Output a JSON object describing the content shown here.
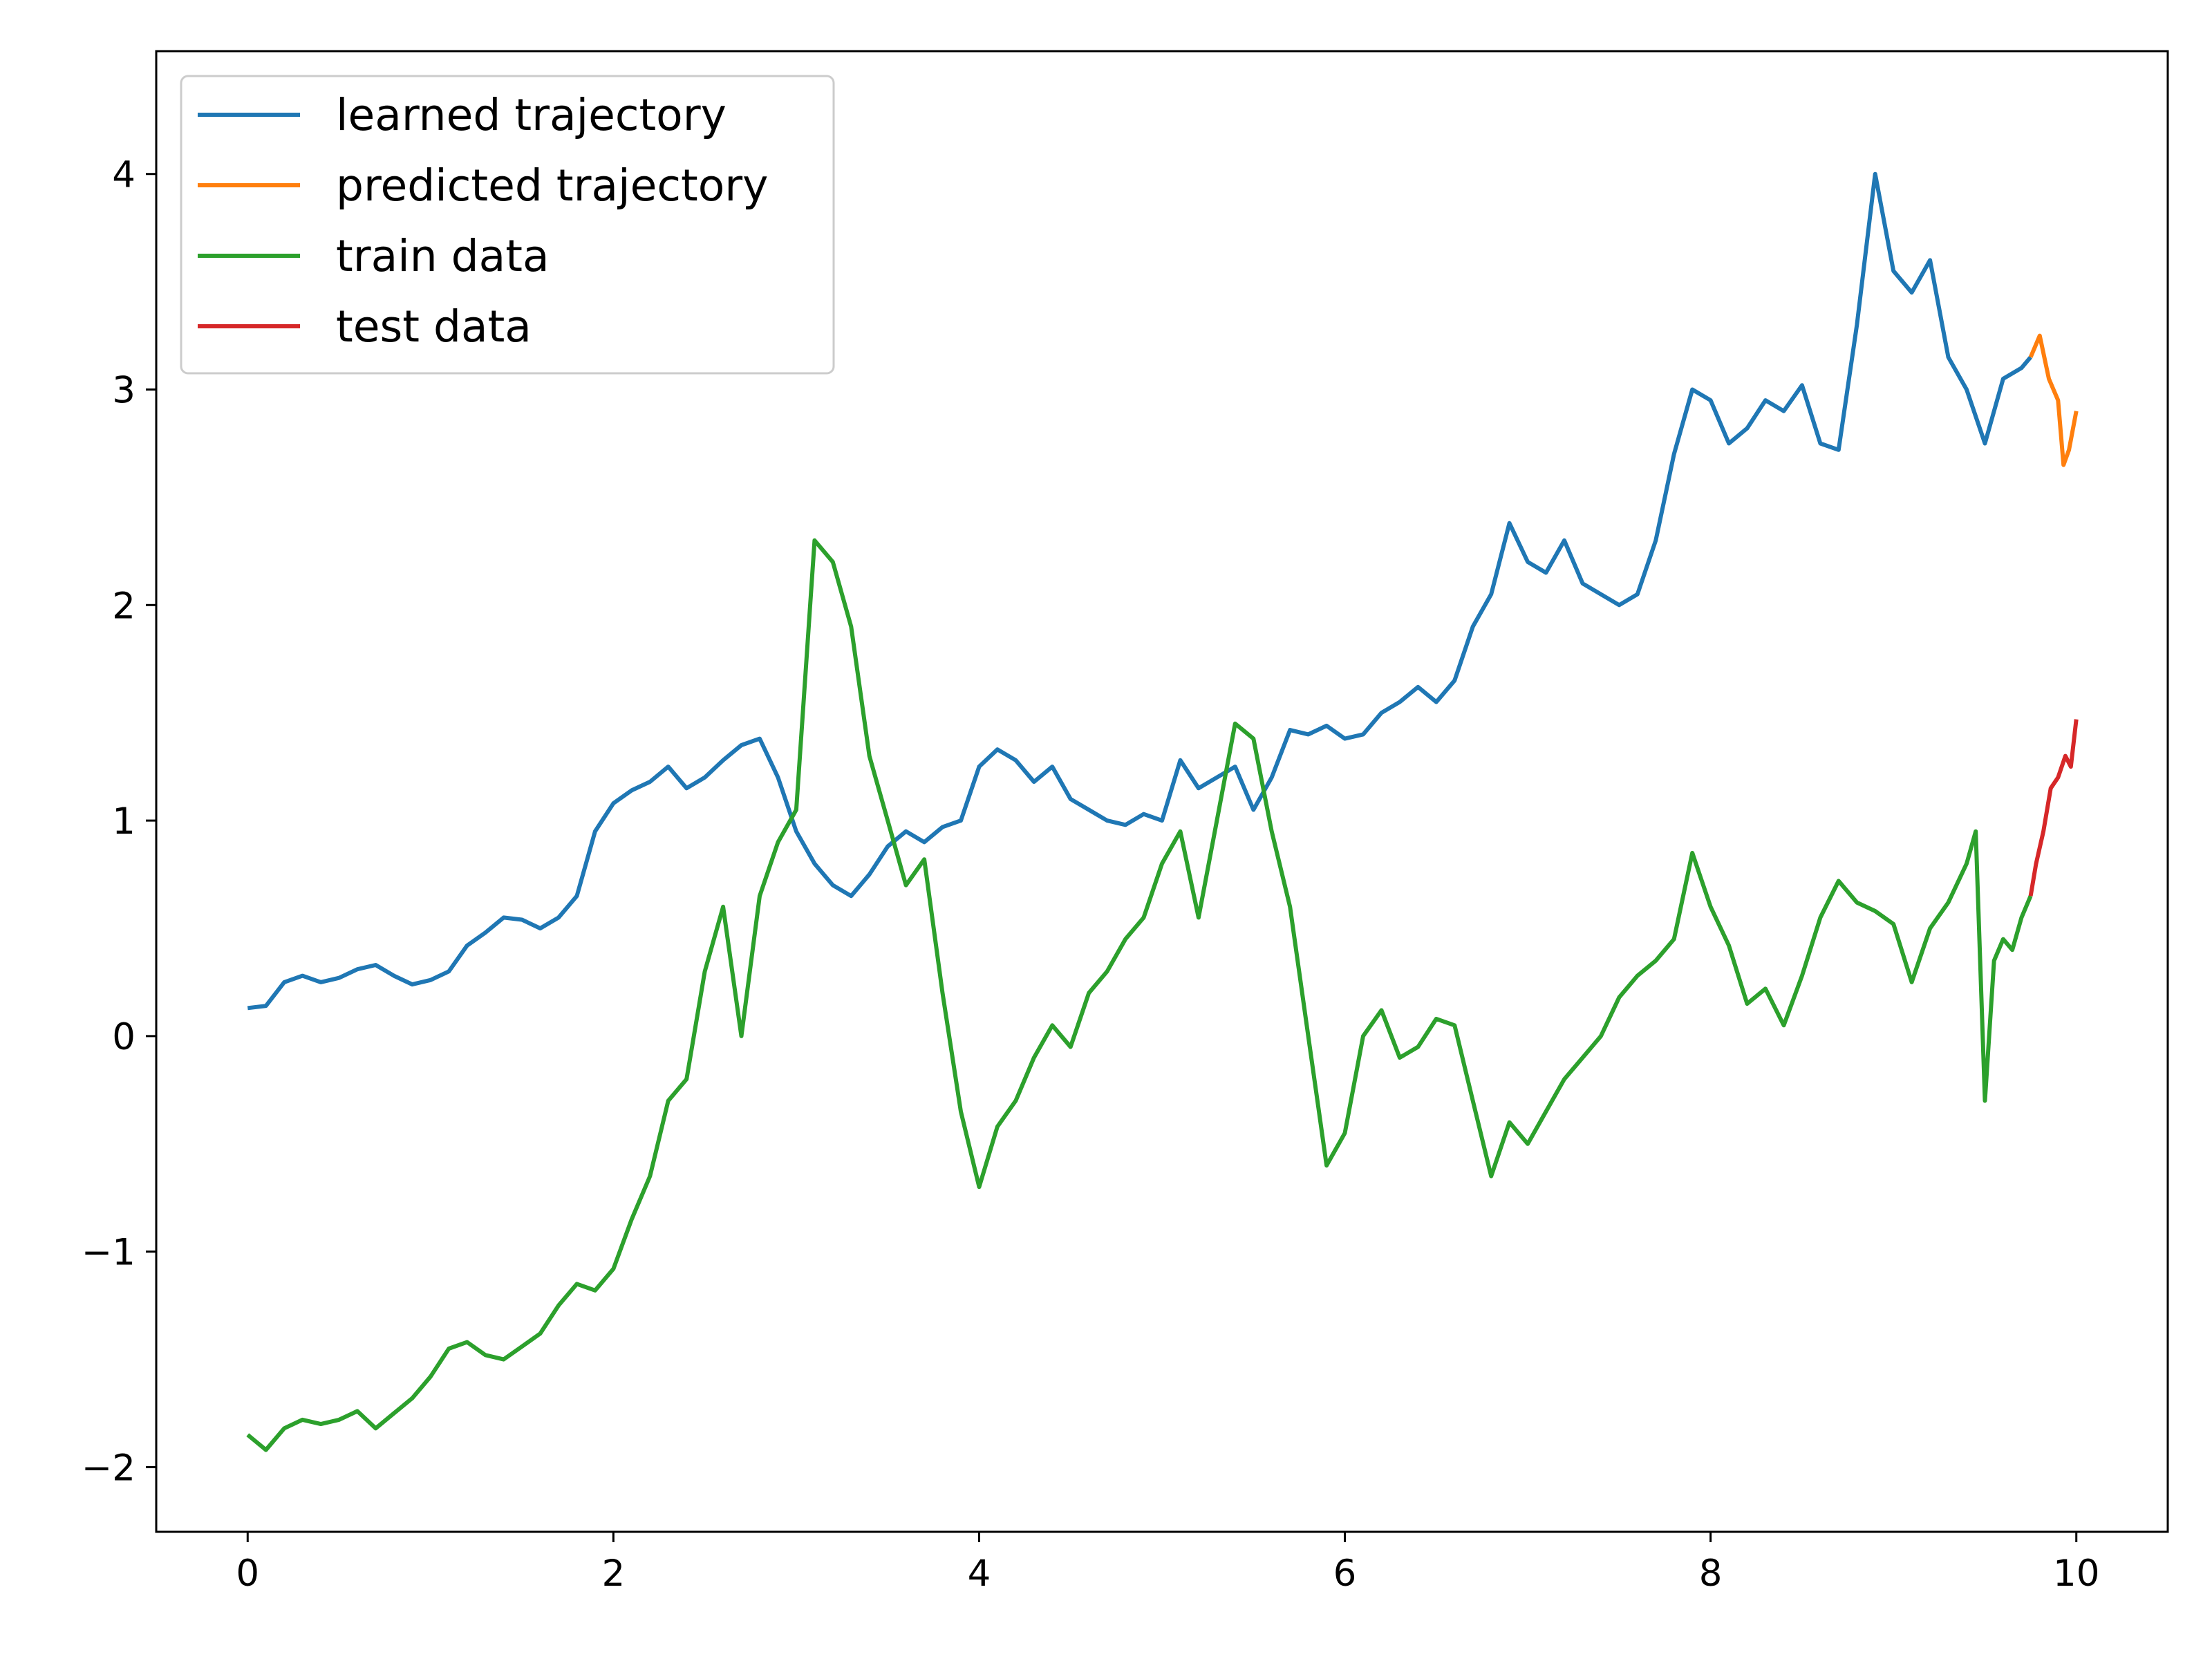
{
  "chart_data": {
    "type": "line",
    "title": "",
    "xlabel": "",
    "ylabel": "",
    "xlim": [
      -0.5,
      10.5
    ],
    "ylim": [
      -2.3,
      4.57
    ],
    "grid": false,
    "legend_position": "top-left",
    "x_ticks": [
      {
        "value": 0,
        "label": "0"
      },
      {
        "value": 2,
        "label": "2"
      },
      {
        "value": 4,
        "label": "4"
      },
      {
        "value": 6,
        "label": "6"
      },
      {
        "value": 8,
        "label": "8"
      },
      {
        "value": 10,
        "label": "10"
      }
    ],
    "y_ticks": [
      {
        "value": -2,
        "label": "−2"
      },
      {
        "value": -1,
        "label": "−1"
      },
      {
        "value": 0,
        "label": "0"
      },
      {
        "value": 1,
        "label": "1"
      },
      {
        "value": 2,
        "label": "2"
      },
      {
        "value": 3,
        "label": "3"
      },
      {
        "value": 4,
        "label": "4"
      }
    ],
    "series": [
      {
        "name": "learned trajectory",
        "color": "#1f77b4",
        "points": [
          [
            0,
            0.13
          ],
          [
            0.1,
            0.14
          ],
          [
            0.2,
            0.25
          ],
          [
            0.3,
            0.28
          ],
          [
            0.4,
            0.25
          ],
          [
            0.5,
            0.27
          ],
          [
            0.6,
            0.31
          ],
          [
            0.7,
            0.33
          ],
          [
            0.8,
            0.28
          ],
          [
            0.9,
            0.24
          ],
          [
            1.0,
            0.26
          ],
          [
            1.1,
            0.3
          ],
          [
            1.2,
            0.42
          ],
          [
            1.3,
            0.48
          ],
          [
            1.4,
            0.55
          ],
          [
            1.5,
            0.54
          ],
          [
            1.6,
            0.5
          ],
          [
            1.7,
            0.55
          ],
          [
            1.8,
            0.65
          ],
          [
            1.9,
            0.95
          ],
          [
            2.0,
            1.08
          ],
          [
            2.1,
            1.14
          ],
          [
            2.2,
            1.18
          ],
          [
            2.3,
            1.25
          ],
          [
            2.4,
            1.15
          ],
          [
            2.5,
            1.2
          ],
          [
            2.6,
            1.28
          ],
          [
            2.7,
            1.35
          ],
          [
            2.8,
            1.38
          ],
          [
            2.9,
            1.2
          ],
          [
            3.0,
            0.95
          ],
          [
            3.1,
            0.8
          ],
          [
            3.2,
            0.7
          ],
          [
            3.3,
            0.65
          ],
          [
            3.4,
            0.75
          ],
          [
            3.5,
            0.88
          ],
          [
            3.6,
            0.95
          ],
          [
            3.7,
            0.9
          ],
          [
            3.8,
            0.97
          ],
          [
            3.9,
            1.0
          ],
          [
            4.0,
            1.25
          ],
          [
            4.1,
            1.33
          ],
          [
            4.2,
            1.28
          ],
          [
            4.3,
            1.18
          ],
          [
            4.4,
            1.25
          ],
          [
            4.5,
            1.1
          ],
          [
            4.6,
            1.05
          ],
          [
            4.7,
            1.0
          ],
          [
            4.8,
            0.98
          ],
          [
            4.9,
            1.03
          ],
          [
            5.0,
            1.0
          ],
          [
            5.1,
            1.28
          ],
          [
            5.2,
            1.15
          ],
          [
            5.3,
            1.2
          ],
          [
            5.4,
            1.25
          ],
          [
            5.5,
            1.05
          ],
          [
            5.6,
            1.2
          ],
          [
            5.7,
            1.42
          ],
          [
            5.8,
            1.4
          ],
          [
            5.9,
            1.44
          ],
          [
            6.0,
            1.38
          ],
          [
            6.1,
            1.4
          ],
          [
            6.2,
            1.5
          ],
          [
            6.3,
            1.55
          ],
          [
            6.4,
            1.62
          ],
          [
            6.5,
            1.55
          ],
          [
            6.6,
            1.65
          ],
          [
            6.7,
            1.9
          ],
          [
            6.8,
            2.05
          ],
          [
            6.9,
            2.38
          ],
          [
            7.0,
            2.2
          ],
          [
            7.1,
            2.15
          ],
          [
            7.2,
            2.3
          ],
          [
            7.3,
            2.1
          ],
          [
            7.4,
            2.05
          ],
          [
            7.5,
            2.0
          ],
          [
            7.6,
            2.05
          ],
          [
            7.7,
            2.3
          ],
          [
            7.8,
            2.7
          ],
          [
            7.9,
            3.0
          ],
          [
            8.0,
            2.95
          ],
          [
            8.1,
            2.75
          ],
          [
            8.2,
            2.82
          ],
          [
            8.3,
            2.95
          ],
          [
            8.4,
            2.9
          ],
          [
            8.5,
            3.02
          ],
          [
            8.6,
            2.75
          ],
          [
            8.7,
            2.72
          ],
          [
            8.8,
            3.3
          ],
          [
            8.9,
            4.0
          ],
          [
            9.0,
            3.55
          ],
          [
            9.1,
            3.45
          ],
          [
            9.2,
            3.6
          ],
          [
            9.3,
            3.15
          ],
          [
            9.4,
            3.0
          ],
          [
            9.5,
            2.75
          ],
          [
            9.6,
            3.05
          ],
          [
            9.7,
            3.1
          ],
          [
            9.75,
            3.15
          ]
        ]
      },
      {
        "name": "predicted trajectory",
        "color": "#ff7f0e",
        "points": [
          [
            9.75,
            3.15
          ],
          [
            9.8,
            3.25
          ],
          [
            9.85,
            3.05
          ],
          [
            9.9,
            2.95
          ],
          [
            9.93,
            2.65
          ],
          [
            9.96,
            2.72
          ],
          [
            10.0,
            2.9
          ]
        ]
      },
      {
        "name": "train data",
        "color": "#2ca02c",
        "points": [
          [
            0,
            -1.85
          ],
          [
            0.1,
            -1.92
          ],
          [
            0.2,
            -1.82
          ],
          [
            0.3,
            -1.78
          ],
          [
            0.4,
            -1.8
          ],
          [
            0.5,
            -1.78
          ],
          [
            0.6,
            -1.74
          ],
          [
            0.7,
            -1.82
          ],
          [
            0.8,
            -1.75
          ],
          [
            0.9,
            -1.68
          ],
          [
            1.0,
            -1.58
          ],
          [
            1.1,
            -1.45
          ],
          [
            1.2,
            -1.42
          ],
          [
            1.3,
            -1.48
          ],
          [
            1.4,
            -1.5
          ],
          [
            1.5,
            -1.44
          ],
          [
            1.6,
            -1.38
          ],
          [
            1.7,
            -1.25
          ],
          [
            1.8,
            -1.15
          ],
          [
            1.9,
            -1.18
          ],
          [
            2.0,
            -1.08
          ],
          [
            2.1,
            -0.85
          ],
          [
            2.2,
            -0.65
          ],
          [
            2.3,
            -0.3
          ],
          [
            2.4,
            -0.2
          ],
          [
            2.5,
            0.3
          ],
          [
            2.6,
            0.6
          ],
          [
            2.7,
            0.0
          ],
          [
            2.8,
            0.65
          ],
          [
            2.9,
            0.9
          ],
          [
            3.0,
            1.05
          ],
          [
            3.1,
            2.3
          ],
          [
            3.2,
            2.2
          ],
          [
            3.3,
            1.9
          ],
          [
            3.4,
            1.3
          ],
          [
            3.5,
            1.0
          ],
          [
            3.6,
            0.7
          ],
          [
            3.7,
            0.82
          ],
          [
            3.8,
            0.2
          ],
          [
            3.9,
            -0.35
          ],
          [
            4.0,
            -0.7
          ],
          [
            4.1,
            -0.42
          ],
          [
            4.2,
            -0.3
          ],
          [
            4.3,
            -0.1
          ],
          [
            4.4,
            0.05
          ],
          [
            4.5,
            -0.05
          ],
          [
            4.6,
            0.2
          ],
          [
            4.7,
            0.3
          ],
          [
            4.8,
            0.45
          ],
          [
            4.9,
            0.55
          ],
          [
            5.0,
            0.8
          ],
          [
            5.1,
            0.95
          ],
          [
            5.2,
            0.55
          ],
          [
            5.3,
            1.0
          ],
          [
            5.4,
            1.45
          ],
          [
            5.5,
            1.38
          ],
          [
            5.6,
            0.95
          ],
          [
            5.7,
            0.6
          ],
          [
            5.8,
            0.0
          ],
          [
            5.9,
            -0.6
          ],
          [
            6.0,
            -0.45
          ],
          [
            6.1,
            0.0
          ],
          [
            6.2,
            0.12
          ],
          [
            6.3,
            -0.1
          ],
          [
            6.4,
            -0.05
          ],
          [
            6.5,
            0.08
          ],
          [
            6.6,
            0.05
          ],
          [
            6.7,
            -0.3
          ],
          [
            6.8,
            -0.65
          ],
          [
            6.9,
            -0.4
          ],
          [
            7.0,
            -0.5
          ],
          [
            7.1,
            -0.35
          ],
          [
            7.2,
            -0.2
          ],
          [
            7.3,
            -0.1
          ],
          [
            7.4,
            0.0
          ],
          [
            7.5,
            0.18
          ],
          [
            7.6,
            0.28
          ],
          [
            7.7,
            0.35
          ],
          [
            7.8,
            0.45
          ],
          [
            7.9,
            0.85
          ],
          [
            8.0,
            0.6
          ],
          [
            8.1,
            0.42
          ],
          [
            8.2,
            0.15
          ],
          [
            8.3,
            0.22
          ],
          [
            8.4,
            0.05
          ],
          [
            8.5,
            0.28
          ],
          [
            8.6,
            0.55
          ],
          [
            8.7,
            0.72
          ],
          [
            8.8,
            0.62
          ],
          [
            8.9,
            0.58
          ],
          [
            9.0,
            0.52
          ],
          [
            9.1,
            0.25
          ],
          [
            9.2,
            0.5
          ],
          [
            9.3,
            0.62
          ],
          [
            9.4,
            0.8
          ],
          [
            9.45,
            0.95
          ],
          [
            9.5,
            -0.3
          ],
          [
            9.55,
            0.35
          ],
          [
            9.6,
            0.45
          ],
          [
            9.65,
            0.4
          ],
          [
            9.7,
            0.55
          ],
          [
            9.75,
            0.65
          ]
        ]
      },
      {
        "name": "test data",
        "color": "#d62728",
        "points": [
          [
            9.75,
            0.65
          ],
          [
            9.78,
            0.8
          ],
          [
            9.82,
            0.95
          ],
          [
            9.86,
            1.15
          ],
          [
            9.9,
            1.2
          ],
          [
            9.94,
            1.3
          ],
          [
            9.97,
            1.25
          ],
          [
            10.0,
            1.47
          ]
        ]
      }
    ]
  }
}
